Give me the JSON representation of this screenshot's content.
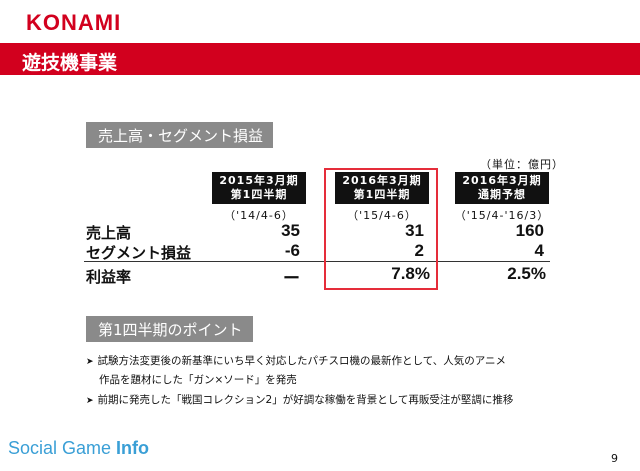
{
  "header": {
    "logo": "KONAMI",
    "title": "遊技機事業"
  },
  "section1": {
    "label": "売上高・セグメント損益"
  },
  "table": {
    "unit": "（単位：億円）",
    "columns": [
      {
        "line1": "2015年3月期",
        "line2": "第1四半期",
        "period": "（'14/4-6）"
      },
      {
        "line1": "2016年3月期",
        "line2": "第1四半期",
        "period": "（'15/4-6）"
      },
      {
        "line1": "2016年3月期",
        "line2": "通期予想",
        "period": "（'15/4-'16/3）"
      }
    ],
    "rows": [
      {
        "label": "売上高",
        "values": [
          "35",
          "31",
          "160"
        ]
      },
      {
        "label": "セグメント損益",
        "values": [
          "-6",
          "2",
          "4"
        ]
      },
      {
        "label": "利益率",
        "values": [
          "ー",
          "7.8%",
          "2.5%"
        ]
      }
    ],
    "highlight_color": "#e52d3a"
  },
  "section2": {
    "label": "第1四半期のポイント"
  },
  "bullets": [
    {
      "line1": "試験方法変更後の新基準にいち早く対応したパチスロ機の最新作として、人気のアニメ",
      "line2": "作品を題材にした「ガン×ソード」を発売"
    },
    {
      "line1": "前期に発売した「戦国コレクション2」が好調な稼働を背景として再販受注が堅調に推移",
      "line2": ""
    }
  ],
  "footer": {
    "watermark_light": "Social Game ",
    "watermark_bold": "Info",
    "page_number": "9"
  },
  "colors": {
    "brand_red": "#d2001e",
    "section_gray": "#8a8a8a",
    "watermark_blue": "#3a9fd6"
  }
}
